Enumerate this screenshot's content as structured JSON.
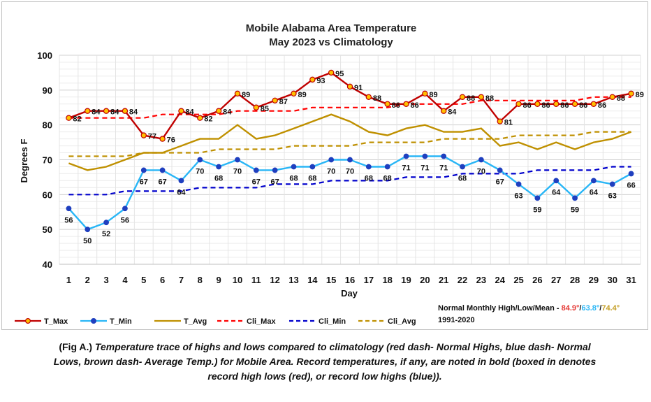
{
  "chart_data": {
    "type": "line",
    "title": "Mobile Alabama Area Temperature",
    "subtitle": "May 2023 vs Climatology",
    "xlabel": "Day",
    "ylabel": "Degrees F",
    "ylim": [
      40,
      100
    ],
    "yticks": [
      40,
      50,
      60,
      70,
      80,
      90,
      100
    ],
    "grid": true,
    "legend_position": "bottom",
    "categories": [
      1,
      2,
      3,
      4,
      5,
      6,
      7,
      8,
      9,
      10,
      11,
      12,
      13,
      14,
      15,
      16,
      17,
      18,
      19,
      20,
      21,
      22,
      23,
      24,
      25,
      26,
      27,
      28,
      29,
      30,
      31
    ],
    "series": [
      {
        "name": "T_Max",
        "color": "#c00000",
        "style": "solid",
        "marker": "circle",
        "values": [
          82,
          84,
          84,
          84,
          77,
          76,
          84,
          82,
          84,
          89,
          85,
          87,
          89,
          93,
          95,
          91,
          88,
          86,
          86,
          89,
          84,
          88,
          88,
          81,
          86,
          86,
          86,
          86,
          86,
          88,
          89
        ]
      },
      {
        "name": "T_Min",
        "color": "#29b6f6",
        "style": "solid",
        "marker": "circle",
        "values": [
          56,
          50,
          52,
          56,
          67,
          67,
          64,
          70,
          68,
          70,
          67,
          67,
          68,
          68,
          70,
          70,
          68,
          68,
          71,
          71,
          71,
          68,
          70,
          67,
          63,
          59,
          64,
          59,
          64,
          63,
          66
        ]
      },
      {
        "name": "T_Avg",
        "color": "#bf9000",
        "style": "solid",
        "marker": "none",
        "values": [
          69,
          67,
          68,
          70,
          72,
          72,
          74,
          76,
          76,
          80,
          76,
          77,
          79,
          81,
          83,
          81,
          78,
          77,
          79,
          80,
          78,
          78,
          79,
          74,
          75,
          73,
          75,
          73,
          75,
          76,
          78
        ]
      },
      {
        "name": "Cli_Max",
        "color": "#ff0000",
        "style": "dash",
        "marker": "none",
        "values": [
          82,
          82,
          82,
          82,
          82,
          83,
          83,
          83,
          83,
          84,
          84,
          84,
          84,
          85,
          85,
          85,
          85,
          85,
          86,
          86,
          86,
          86,
          87,
          87,
          87,
          87,
          87,
          87,
          88,
          88,
          88
        ]
      },
      {
        "name": "Cli_Min",
        "color": "#0000cc",
        "style": "dash",
        "marker": "none",
        "values": [
          60,
          60,
          60,
          61,
          61,
          61,
          61,
          62,
          62,
          62,
          62,
          63,
          63,
          63,
          64,
          64,
          64,
          64,
          65,
          65,
          65,
          66,
          66,
          66,
          66,
          67,
          67,
          67,
          67,
          68,
          68
        ]
      },
      {
        "name": "Cli_Avg",
        "color": "#bf9000",
        "style": "dash",
        "marker": "none",
        "values": [
          71,
          71,
          71,
          71,
          72,
          72,
          72,
          72,
          73,
          73,
          73,
          73,
          74,
          74,
          74,
          74,
          75,
          75,
          75,
          75,
          76,
          76,
          76,
          76,
          77,
          77,
          77,
          77,
          78,
          78,
          78
        ]
      }
    ],
    "max_labels": [
      "82",
      "84",
      "84",
      "84",
      "77",
      "76",
      "84",
      "82",
      "84",
      "89",
      "85",
      "87",
      "89",
      "93",
      "95",
      "91",
      "88",
      "86",
      "86",
      "89",
      "84",
      "88",
      "88",
      "81",
      "86",
      "86",
      "86",
      "86",
      "86",
      "88",
      "89"
    ],
    "min_labels": [
      "56",
      "50",
      "52",
      "56",
      "67",
      "67",
      "64",
      "70",
      "68",
      "70",
      "67",
      "67",
      "68",
      "68",
      "70",
      "70",
      "68",
      "68",
      "71",
      "71",
      "71",
      "68",
      "70",
      "67",
      "63",
      "59",
      "64",
      "59",
      "64",
      "63",
      "66"
    ]
  },
  "normals": {
    "label": "Normal Monthly High/Low/Mean - ",
    "max": "84.9°",
    "sep1": "/",
    "min": "63.8°",
    "sep2": "/",
    "avg": "74.4°",
    "period": "1991-2020"
  },
  "caption": {
    "fig_label": "(Fig A.)",
    "text": " Temperature trace of highs and lows compared to climatology (red dash- Normal Highs, blue dash- Normal Lows, brown dash- Average Temp.) for Mobile Area. Record temperatures, if any, are noted in bold (boxed in denotes record high lows (red), or record low highs (blue))."
  }
}
